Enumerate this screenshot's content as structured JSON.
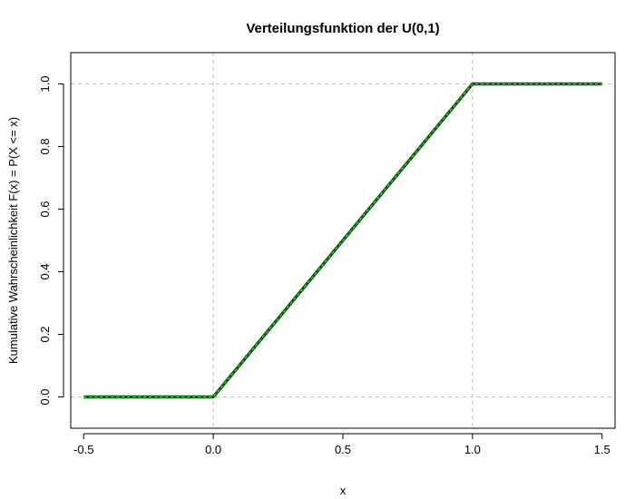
{
  "chart_data": {
    "type": "line",
    "title": "Verteilungsfunktion der U(0,1)",
    "xlabel": "x",
    "ylabel": "Kumulative Wahrscheinlichkeit F(x) = P(X <= x)",
    "xlim": [
      -0.55,
      1.55
    ],
    "ylim": [
      -0.1,
      1.1
    ],
    "xticks": [
      -0.5,
      0.0,
      0.5,
      1.0,
      1.5
    ],
    "xtick_labels": [
      "-0.5",
      "0.0",
      "0.5",
      "1.0",
      "1.5"
    ],
    "yticks": [
      0.0,
      0.2,
      0.4,
      0.6,
      0.8,
      1.0
    ],
    "ytick_labels": [
      "0.0",
      "0.2",
      "0.4",
      "0.6",
      "0.8",
      "1.0"
    ],
    "reference_lines": {
      "vertical": [
        0,
        1
      ],
      "horizontal": [
        0,
        1
      ],
      "style": "dashed",
      "color": "#c0c0c0"
    },
    "series": [
      {
        "x": [
          -0.5,
          0,
          1,
          1.5
        ],
        "y": [
          0,
          0,
          1,
          1
        ],
        "color": "#006400",
        "overlay_color": "#aaaaaa"
      }
    ],
    "grid": false,
    "legend": "none"
  }
}
